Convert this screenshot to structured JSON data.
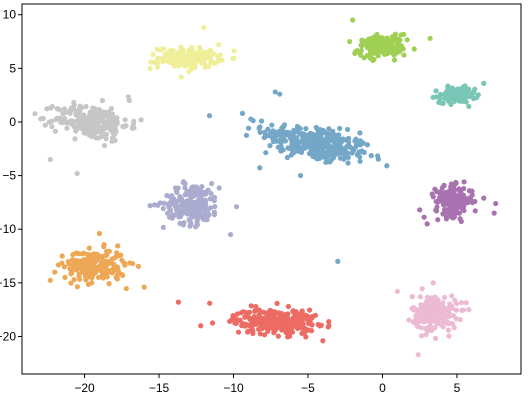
{
  "chart_data": {
    "type": "scatter",
    "title": "",
    "xlabel": "",
    "ylabel": "",
    "xlim": [
      -24.2,
      9.3
    ],
    "ylim": [
      -23.5,
      11.0
    ],
    "grid": false,
    "x_ticks": [
      {
        "value": -20,
        "label": "−20"
      },
      {
        "value": -15,
        "label": "−15"
      },
      {
        "value": -10,
        "label": "−10"
      },
      {
        "value": -5,
        "label": "−5"
      },
      {
        "value": 0,
        "label": "0"
      },
      {
        "value": 5,
        "label": "5"
      }
    ],
    "y_ticks": [
      {
        "value": 10,
        "label": "10"
      },
      {
        "value": 5,
        "label": "5"
      },
      {
        "value": 0,
        "label": "0"
      },
      {
        "value": -5,
        "label": "−5"
      },
      {
        "value": -10,
        "label": "−10"
      },
      {
        "value": -15,
        "label": "−15"
      },
      {
        "value": -20,
        "label": "−20"
      }
    ],
    "series": [
      {
        "color": "#74A6C8",
        "center": [
          -4.5,
          -2.0
        ],
        "spread": [
          2.4,
          1.0
        ],
        "tilt": -0.3,
        "points": 320,
        "extra_points": [
          [
            -7.2,
            2.8
          ],
          [
            -6.9,
            2.6
          ],
          [
            -9.4,
            0.8
          ],
          [
            -3.0,
            -13.0
          ],
          [
            -5.5,
            -5.0
          ]
        ]
      },
      {
        "color": "#9FD054",
        "center": [
          -0.1,
          7.0
        ],
        "spread": [
          1.0,
          0.6
        ],
        "tilt": 0.15,
        "points": 170,
        "extra_points": [
          [
            -2.2,
            7.5
          ],
          [
            -2.0,
            9.5
          ],
          [
            3.2,
            7.8
          ]
        ]
      },
      {
        "color": "#EFEF9A",
        "center": [
          -13.0,
          6.0
        ],
        "spread": [
          1.3,
          0.6
        ],
        "tilt": 0.0,
        "points": 170,
        "extra_points": [
          [
            -12.0,
            8.8
          ],
          [
            -15.6,
            5.0
          ],
          [
            -11.0,
            7.2
          ]
        ]
      },
      {
        "color": "#78C6B5",
        "center": [
          5.0,
          2.5
        ],
        "spread": [
          0.75,
          0.45
        ],
        "tilt": 0.0,
        "points": 140,
        "extra_points": [
          [
            6.8,
            3.6
          ],
          [
            3.4,
            2.3
          ]
        ]
      },
      {
        "color": "#C6C6C6",
        "center": [
          -19.5,
          0.0
        ],
        "spread": [
          1.6,
          1.0
        ],
        "tilt": -0.15,
        "points": 230,
        "extra_points": [
          [
            -22.3,
            -3.5
          ],
          [
            -20.5,
            -4.8
          ],
          [
            -17.0,
            2.0
          ],
          [
            -16.2,
            0.2
          ],
          [
            -18.8,
            2.0
          ]
        ]
      },
      {
        "color": "#ABABCF",
        "center": [
          -12.8,
          -7.6
        ],
        "spread": [
          1.2,
          1.2
        ],
        "tilt": 0.0,
        "points": 200,
        "extra_points": [
          [
            -15.6,
            -7.8
          ],
          [
            -9.8,
            -7.9
          ],
          [
            -10.2,
            -10.5
          ]
        ]
      },
      {
        "color": "#A872B0",
        "center": [
          4.8,
          -7.4
        ],
        "spread": [
          0.8,
          0.9
        ],
        "tilt": 0.0,
        "points": 170,
        "extra_points": [
          [
            7.6,
            -7.6
          ],
          [
            7.5,
            -8.5
          ],
          [
            2.5,
            -8.2
          ],
          [
            3.0,
            -9.5
          ]
        ]
      },
      {
        "color": "#EDA755",
        "center": [
          -19.3,
          -13.4
        ],
        "spread": [
          1.3,
          0.95
        ],
        "tilt": 0.0,
        "points": 210,
        "extra_points": [
          [
            -16.0,
            -15.4
          ],
          [
            -22.0,
            -14.0
          ],
          [
            -19.0,
            -10.4
          ],
          [
            -21.5,
            -12.5
          ]
        ]
      },
      {
        "color": "#EC6B62",
        "center": [
          -7.2,
          -18.6
        ],
        "spread": [
          1.8,
          0.75
        ],
        "tilt": 0.0,
        "points": 260,
        "extra_points": [
          [
            -13.7,
            -16.8
          ],
          [
            -11.6,
            -16.9
          ],
          [
            -12.2,
            -19.0
          ],
          [
            -4.0,
            -20.4
          ],
          [
            -3.6,
            -19.0
          ]
        ]
      },
      {
        "color": "#EDBAD4",
        "center": [
          3.5,
          -17.8
        ],
        "spread": [
          0.95,
          1.05
        ],
        "tilt": 0.0,
        "points": 200,
        "extra_points": [
          [
            1.0,
            -15.8
          ],
          [
            2.4,
            -21.7
          ],
          [
            5.8,
            -17.5
          ],
          [
            3.4,
            -15.0
          ]
        ]
      }
    ]
  }
}
